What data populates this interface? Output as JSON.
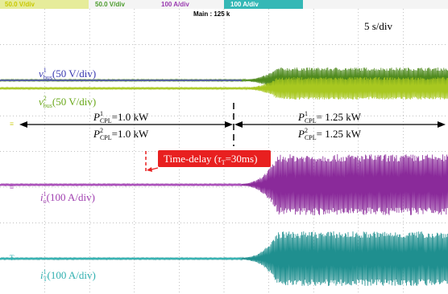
{
  "header": {
    "channels": [
      "50.0 V/div",
      "50.0 V/div",
      "100 A/div",
      "100 A/div"
    ],
    "main": "Main : 125 k",
    "timebase": "5 s/div"
  },
  "traces": [
    {
      "symbol": "v",
      "sup": "1",
      "sub": "bus",
      "scale": "(50 V/div)"
    },
    {
      "symbol": "v",
      "sup": "2",
      "sub": "bus",
      "scale": "(50 V/div)"
    },
    {
      "symbol": "i",
      "sup": "1",
      "sub": "o",
      "scale": "(100 A/div)"
    },
    {
      "symbol": "i",
      "sup": "1",
      "sub": "T",
      "scale": "(100 A/div)"
    }
  ],
  "annotations": {
    "before": [
      {
        "symbol": "P",
        "sup": "1",
        "sub": "CPL",
        "value": "=1.0 kW"
      },
      {
        "symbol": "P",
        "sup": "2",
        "sub": "CPL",
        "value": "=1.0 kW"
      }
    ],
    "after": [
      {
        "symbol": "P",
        "sup": "1",
        "sub": "CPL",
        "value": "=  1.25 kW"
      },
      {
        "symbol": "P",
        "sup": "2",
        "sub": "CPL",
        "value": "=  1.25 kW"
      }
    ],
    "delay": {
      "prefix": "Time-delay (",
      "symbol": "τ",
      "sub": "T",
      "suffix": "=30ms)"
    }
  }
}
